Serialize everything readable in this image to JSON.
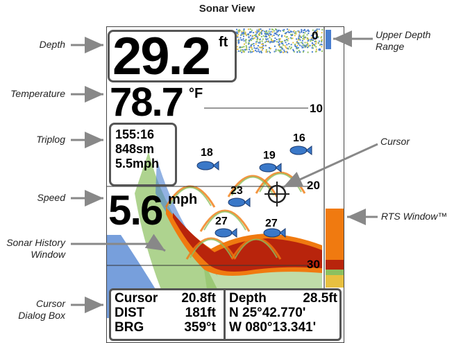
{
  "title": "Sonar View",
  "annotations": {
    "depth": "Depth",
    "temperature": "Temperature",
    "triplog": "Triplog",
    "speed": "Speed",
    "history_line1": "Sonar History",
    "history_line2": "Window",
    "cursor_dialog_line1": "Cursor",
    "cursor_dialog_line2": "Dialog Box",
    "upper_depth_line1": "Upper Depth",
    "upper_depth_line2": "Range",
    "cursor": "Cursor",
    "rts_window": "RTS Window™"
  },
  "display": {
    "depth_value": "29.2",
    "depth_unit": "ft",
    "temperature_value": "78.7",
    "temperature_unit": "°F",
    "triplog": [
      "155:16",
      "848sm",
      "5.5mph"
    ],
    "speed_value": "5.6",
    "speed_unit": "mph",
    "depth_scale": [
      "0",
      "10",
      "20",
      "30"
    ],
    "fish_depths": [
      "16",
      "18",
      "19",
      "23",
      "27",
      "27"
    ]
  },
  "cursor_dialog": {
    "row1_label": "Cursor",
    "row1_value": "20.8ft",
    "row2_label": "DIST",
    "row2_value": "181ft",
    "row3_label": "BRG",
    "row3_value": "359°t",
    "depth_label": "Depth",
    "depth_value": "28.5ft",
    "lat": "N 25°42.770'",
    "lon": "W 080°13.341'"
  },
  "colors": {
    "bottom_red": "#b8240c",
    "bottom_orange": "#f07a10",
    "noise_blue": "#4a7fd0",
    "noise_green": "#8cc060",
    "fish_blue": "#3a78c8"
  }
}
